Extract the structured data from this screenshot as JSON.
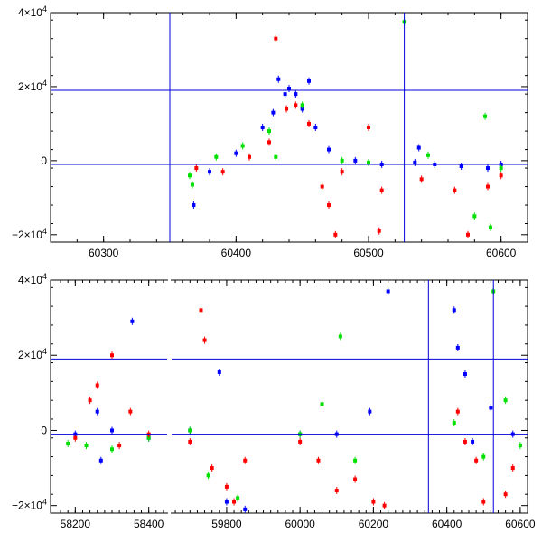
{
  "chart_data": [
    {
      "type": "scatter",
      "title": "",
      "xlabel": "",
      "ylabel": "",
      "xlim": [
        60260,
        60620
      ],
      "ylim": [
        -22000,
        40000
      ],
      "x_ticks": [
        60300,
        60400,
        60500,
        60600
      ],
      "x_tick_labels": [
        "60300",
        "60400",
        "60500",
        "60600"
      ],
      "y_ticks": [
        -20000,
        0,
        20000,
        40000
      ],
      "y_tick_labels": [
        {
          "mantissa": "−2×10",
          "exp": "4"
        },
        {
          "mantissa": "0",
          "exp": ""
        },
        {
          "mantissa": "2×10",
          "exp": "4"
        },
        {
          "mantissa": "4×10",
          "exp": "4"
        }
      ],
      "reference_lines": {
        "vertical": [
          60350,
          60527
        ],
        "horizontal": [
          19000,
          -1000
        ],
        "color": "#0000dd"
      },
      "series": [
        {
          "color": "#0000ff",
          "values": [
            [
              60368,
              -12000
            ],
            [
              60380,
              -3000
            ],
            [
              60400,
              2000
            ],
            [
              60420,
              9000
            ],
            [
              60428,
              13000
            ],
            [
              60432,
              22000
            ],
            [
              60437,
              18000
            ],
            [
              60440,
              19500
            ],
            [
              60445,
              18000
            ],
            [
              60450,
              14000
            ],
            [
              60455,
              21500
            ],
            [
              60460,
              9000
            ],
            [
              60470,
              3000
            ],
            [
              60490,
              0
            ],
            [
              60510,
              -1000
            ],
            [
              60535,
              -500
            ],
            [
              60538,
              3500
            ],
            [
              60550,
              -1000
            ],
            [
              60570,
              -1500
            ],
            [
              60590,
              -2000
            ],
            [
              60600,
              -1000
            ]
          ]
        },
        {
          "color": "#00e000",
          "values": [
            [
              60365,
              -4000
            ],
            [
              60367,
              -6500
            ],
            [
              60385,
              1000
            ],
            [
              60405,
              4000
            ],
            [
              60425,
              8000
            ],
            [
              60430,
              1000
            ],
            [
              60450,
              15000
            ],
            [
              60480,
              0
            ],
            [
              60500,
              -500
            ],
            [
              60527,
              37500
            ],
            [
              60545,
              1500
            ],
            [
              60580,
              -15000
            ],
            [
              60588,
              12000
            ],
            [
              60592,
              -18000
            ],
            [
              60600,
              -2000
            ]
          ]
        },
        {
          "color": "#ff0000",
          "values": [
            [
              60370,
              -2000
            ],
            [
              60390,
              -3000
            ],
            [
              60410,
              1000
            ],
            [
              60425,
              5000
            ],
            [
              60430,
              33000
            ],
            [
              60438,
              14000
            ],
            [
              60445,
              15000
            ],
            [
              60455,
              10000
            ],
            [
              60465,
              -7000
            ],
            [
              60470,
              -12000
            ],
            [
              60475,
              -20000
            ],
            [
              60480,
              -3000
            ],
            [
              60500,
              9000
            ],
            [
              60508,
              -19000
            ],
            [
              60510,
              -8000
            ],
            [
              60540,
              -5000
            ],
            [
              60565,
              -8000
            ],
            [
              60575,
              -20000
            ],
            [
              60590,
              -7000
            ],
            [
              60600,
              -4000
            ]
          ]
        }
      ]
    },
    {
      "type": "scatter",
      "title": "",
      "xlabel": "",
      "ylabel": "",
      "axis_break": "between 58450 and 59650",
      "xlim": [
        58110,
        60620
      ],
      "ylim": [
        -22000,
        40000
      ],
      "x_ticks": [
        58200,
        58400,
        59800,
        60000,
        60200,
        60400,
        60600
      ],
      "x_tick_labels": [
        "58200",
        "58400",
        "59800",
        "60000",
        "60200",
        "60400",
        "60600"
      ],
      "y_ticks": [
        -20000,
        0,
        20000,
        40000
      ],
      "y_tick_labels": [
        {
          "mantissa": "−2×10",
          "exp": "4"
        },
        {
          "mantissa": "0",
          "exp": ""
        },
        {
          "mantissa": "2×10",
          "exp": "4"
        },
        {
          "mantissa": "4×10",
          "exp": "4"
        }
      ],
      "reference_lines": {
        "vertical": [
          60350,
          60527
        ],
        "horizontal": [
          19000,
          -1000
        ],
        "color": "#0000dd"
      },
      "series": [
        {
          "color": "#0000ff",
          "values": [
            [
              58200,
              -1000
            ],
            [
              58260,
              5000
            ],
            [
              58270,
              -8000
            ],
            [
              58300,
              0
            ],
            [
              58355,
              29000
            ],
            [
              58400,
              -2000
            ],
            [
              59700,
              0
            ],
            [
              59780,
              15500
            ],
            [
              59800,
              -19000
            ],
            [
              59850,
              -21000
            ],
            [
              60000,
              -1000
            ],
            [
              60100,
              -1000
            ],
            [
              60190,
              5000
            ],
            [
              60240,
              37000
            ],
            [
              60420,
              32000
            ],
            [
              60430,
              22000
            ],
            [
              60450,
              15000
            ],
            [
              60470,
              -3000
            ],
            [
              60520,
              6000
            ],
            [
              60580,
              -1000
            ]
          ]
        },
        {
          "color": "#00e000",
          "values": [
            [
              58180,
              -3500
            ],
            [
              58230,
              -4000
            ],
            [
              58300,
              -5000
            ],
            [
              58400,
              -2000
            ],
            [
              59700,
              0
            ],
            [
              59750,
              -12000
            ],
            [
              59830,
              -18000
            ],
            [
              60000,
              -1000
            ],
            [
              60060,
              7000
            ],
            [
              60110,
              25000
            ],
            [
              60150,
              -8000
            ],
            [
              60420,
              2000
            ],
            [
              60500,
              -7000
            ],
            [
              60527,
              37000
            ],
            [
              60560,
              8000
            ],
            [
              60600,
              -4000
            ]
          ]
        },
        {
          "color": "#ff0000",
          "values": [
            [
              58200,
              -2000
            ],
            [
              58240,
              8000
            ],
            [
              58260,
              12000
            ],
            [
              58300,
              20000
            ],
            [
              58320,
              -4000
            ],
            [
              58350,
              5000
            ],
            [
              58400,
              -1000
            ],
            [
              59700,
              -3000
            ],
            [
              59730,
              32000
            ],
            [
              59740,
              24000
            ],
            [
              59760,
              -10000
            ],
            [
              59800,
              -15000
            ],
            [
              59820,
              -19000
            ],
            [
              59850,
              -8000
            ],
            [
              60000,
              -3000
            ],
            [
              60050,
              -8000
            ],
            [
              60100,
              -16000
            ],
            [
              60150,
              -13000
            ],
            [
              60200,
              -19000
            ],
            [
              60230,
              -20000
            ],
            [
              60430,
              5000
            ],
            [
              60450,
              -3000
            ],
            [
              60480,
              -8000
            ],
            [
              60500,
              -19000
            ],
            [
              60560,
              -17000
            ],
            [
              60580,
              -10000
            ]
          ]
        }
      ]
    }
  ]
}
